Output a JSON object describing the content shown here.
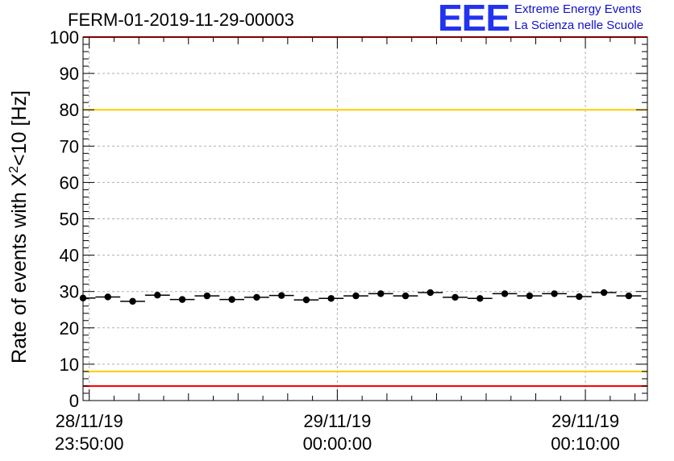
{
  "header": {
    "title": "FERM-01-2019-11-29-00003",
    "logo_mark": "EEE",
    "logo_line1": "Extreme Energy Events",
    "logo_line2": "La Scienza nelle Scuole"
  },
  "colors": {
    "points": "#000000",
    "red_line": "#ff0000",
    "yellow_line": "#ffcc00",
    "grid": "#b0b0b0",
    "logo": "#2233ee"
  },
  "chart_data": {
    "type": "scatter",
    "title": "FERM-01-2019-11-29-00003",
    "ylabel_parts": [
      "Rate of events with X",
      "2",
      "<10 [Hz]"
    ],
    "xlabel": "",
    "ylim": [
      0,
      100
    ],
    "yticks": [
      0,
      10,
      20,
      30,
      40,
      50,
      60,
      70,
      80,
      90,
      100
    ],
    "xlim": [
      "28/11/19 23:49:45",
      "29/11/19 00:12:30"
    ],
    "xticks": [
      {
        "x": "28/11/19 23:50:00",
        "date": "28/11/19",
        "time": "23:50:00"
      },
      {
        "x": "29/11/19 00:00:00",
        "date": "29/11/19",
        "time": "00:00:00"
      },
      {
        "x": "29/11/19 00:10:00",
        "date": "29/11/19",
        "time": "00:10:00"
      }
    ],
    "grid": true,
    "reference_lines": [
      {
        "y": 80,
        "color": "#ffcc00"
      },
      {
        "y": 8,
        "color": "#ffcc00"
      },
      {
        "y": 100,
        "color": "#ff0000"
      },
      {
        "y": 4,
        "color": "#ff0000"
      }
    ],
    "series": [
      {
        "x": [
          "28/11/19 23:49:45",
          "28/11/19 23:50:45",
          "28/11/19 23:51:45",
          "28/11/19 23:52:45",
          "28/11/19 23:53:45",
          "28/11/19 23:54:45",
          "28/11/19 23:55:45",
          "28/11/19 23:56:45",
          "28/11/19 23:57:45",
          "28/11/19 23:58:45",
          "28/11/19 23:59:45",
          "29/11/19 00:00:45",
          "29/11/19 00:01:45",
          "29/11/19 00:02:45",
          "29/11/19 00:03:45",
          "29/11/19 00:04:45",
          "29/11/19 00:05:45",
          "29/11/19 00:06:45",
          "29/11/19 00:07:45",
          "29/11/19 00:08:45",
          "29/11/19 00:09:45",
          "29/11/19 00:10:45",
          "29/11/19 00:11:45"
        ],
        "values": [
          28.2,
          28.5,
          27.3,
          29.0,
          27.8,
          28.8,
          27.8,
          28.4,
          28.9,
          27.7,
          28.1,
          28.8,
          29.4,
          28.8,
          29.7,
          28.4,
          28.1,
          29.4,
          28.8,
          29.4,
          28.6,
          29.7,
          28.8
        ]
      }
    ]
  }
}
